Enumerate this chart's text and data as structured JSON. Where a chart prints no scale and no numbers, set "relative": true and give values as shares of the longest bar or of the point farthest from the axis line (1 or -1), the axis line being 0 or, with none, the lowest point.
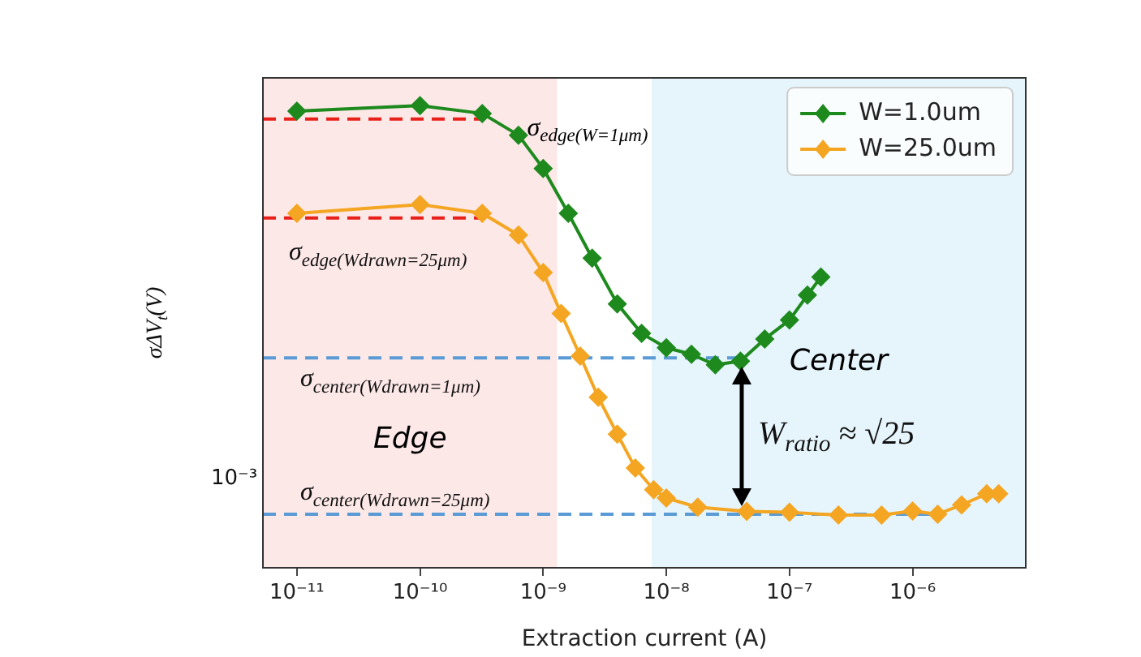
{
  "chart_data": {
    "type": "line",
    "xlabel": "Extraction current (A)",
    "ylabel": "σΔV$_{t}$(V)",
    "log": "x",
    "legend": "top right",
    "marker": "diamond",
    "relative": true,
    "xlim": [
      5.3e-12,
      8.3e-06
    ],
    "xticks": [
      {
        "value": 1e-11,
        "label": "10⁻¹¹"
      },
      {
        "value": 1e-10,
        "label": "10⁻¹⁰"
      },
      {
        "value": 1e-09,
        "label": "10⁻⁹"
      },
      {
        "value": 1e-08,
        "label": "10⁻⁸"
      },
      {
        "value": 1e-07,
        "label": "10⁻⁷"
      },
      {
        "value": 1e-06,
        "label": "10⁻⁶"
      }
    ],
    "bands": [
      {
        "axis": "x",
        "from": 5.3e-12,
        "to": 1.3e-09,
        "label": "Edge",
        "color": "#fde8e8"
      },
      {
        "axis": "x",
        "from": 7.6e-09,
        "to": 8.3e-06,
        "label": "Center",
        "color": "#e6f4fb"
      }
    ],
    "series": [
      {
        "name": "W=1.0um",
        "color": "#1e8a1e",
        "x": [
          1e-11,
          1e-10,
          3.2e-10,
          6.3e-10,
          1e-09,
          1.6e-09,
          2.5e-09,
          4e-09,
          6.3e-09,
          1e-08,
          1.6e-08,
          2.5e-08,
          4e-08,
          6.3e-08,
          1e-07,
          1.4e-07,
          1.8e-07
        ],
        "values": [
          0.988,
          1,
          0.983,
          0.936,
          0.864,
          0.767,
          0.67,
          0.571,
          0.507,
          0.476,
          0.462,
          0.439,
          0.447,
          0.495,
          0.536,
          0.59,
          0.629
        ]
      },
      {
        "name": "W=25.0um",
        "color": "#f4a623",
        "x": [
          1e-11,
          1e-10,
          3.2e-10,
          6.3e-10,
          1e-09,
          1.4e-09,
          2e-09,
          2.8e-09,
          4e-09,
          5.6e-09,
          7.9e-09,
          1e-08,
          1.8e-08,
          4.5e-08,
          1e-07,
          2.5e-07,
          5.6e-07,
          1e-06,
          1.6e-06,
          2.5e-06,
          4e-06,
          5e-06
        ],
        "values": [
          0.767,
          0.786,
          0.767,
          0.72,
          0.639,
          0.55,
          0.458,
          0.369,
          0.289,
          0.216,
          0.169,
          0.151,
          0.131,
          0.122,
          0.12,
          0.114,
          0.114,
          0.123,
          0.116,
          0.136,
          0.16,
          0.16
        ]
      },
      {
        "type": "line",
        "color": "#e8201a",
        "line_style": "dashed",
        "marker": "none",
        "x": [
          5.3e-12,
          3.2e-10
        ],
        "values": [
          0.971,
          0.971
        ]
      },
      {
        "type": "line",
        "color": "#e8201a",
        "line_style": "dashed",
        "marker": "none",
        "x": [
          5.3e-12,
          3.2e-10
        ],
        "values": [
          0.757,
          0.757
        ]
      },
      {
        "type": "line",
        "color": "#5b9bd5",
        "line_style": "dashed",
        "marker": "none",
        "x": [
          5.3e-12,
          4.4e-08
        ],
        "values": [
          0.454,
          0.454
        ]
      },
      {
        "type": "line",
        "color": "#5b9bd5",
        "line_style": "dashed",
        "marker": "none",
        "x": [
          5.3e-12,
          1.4e-06
        ],
        "values": [
          0.116,
          0.116
        ]
      }
    ],
    "annotations": [
      {
        "text": "σ$_{edge(W=1μm)}$",
        "x": 7.4e-10,
        "y": 0.951
      },
      "σ$_{edge(Wdrawn=25μm)}$",
      "σ$_{center(Wdrawn=1μm)}$",
      "σ$_{center(Wdrawn=25μm)}$",
      "W$_{ratio}$ ≈ √25",
      "10⁻³"
    ]
  }
}
